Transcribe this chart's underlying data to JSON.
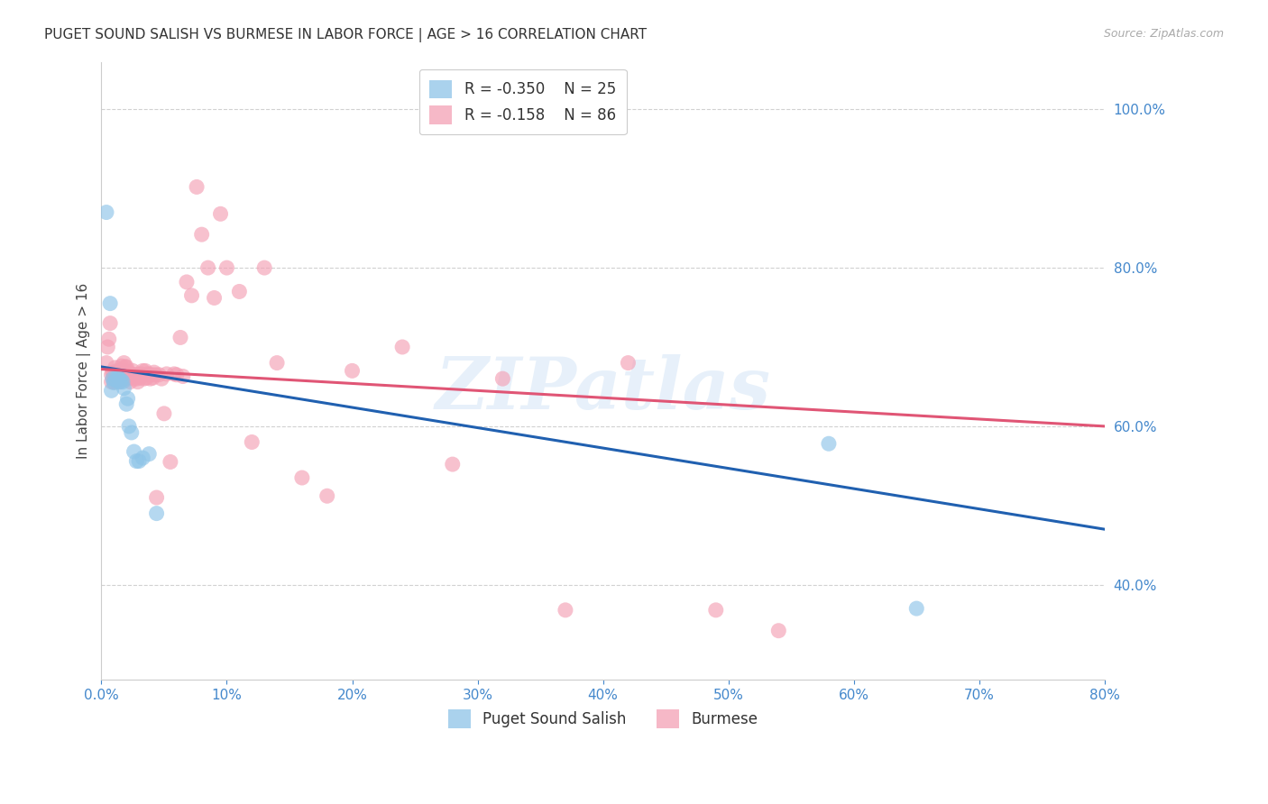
{
  "title": "PUGET SOUND SALISH VS BURMESE IN LABOR FORCE | AGE > 16 CORRELATION CHART",
  "source": "Source: ZipAtlas.com",
  "ylabel": "In Labor Force | Age > 16",
  "legend_labels": [
    "Puget Sound Salish",
    "Burmese"
  ],
  "legend_R": [
    -0.35,
    -0.158
  ],
  "legend_N": [
    25,
    86
  ],
  "blue_color": "#8ec4e8",
  "pink_color": "#f4a0b5",
  "line_blue": "#2060b0",
  "line_pink": "#e05575",
  "axis_color": "#4488cc",
  "xmin": 0.0,
  "xmax": 0.8,
  "ymin": 0.28,
  "ymax": 1.06,
  "yticks": [
    0.4,
    0.6,
    0.8,
    1.0
  ],
  "xticks": [
    0.0,
    0.1,
    0.2,
    0.3,
    0.4,
    0.5,
    0.6,
    0.7,
    0.8
  ],
  "blue_x": [
    0.004,
    0.007,
    0.008,
    0.009,
    0.01,
    0.011,
    0.012,
    0.013,
    0.014,
    0.015,
    0.016,
    0.017,
    0.018,
    0.02,
    0.021,
    0.022,
    0.024,
    0.026,
    0.028,
    0.03,
    0.033,
    0.038,
    0.044,
    0.58,
    0.65
  ],
  "blue_y": [
    0.87,
    0.755,
    0.645,
    0.66,
    0.655,
    0.66,
    0.657,
    0.662,
    0.66,
    0.656,
    0.658,
    0.656,
    0.648,
    0.628,
    0.635,
    0.6,
    0.592,
    0.568,
    0.556,
    0.556,
    0.56,
    0.565,
    0.49,
    0.578,
    0.37
  ],
  "pink_x": [
    0.004,
    0.005,
    0.006,
    0.007,
    0.008,
    0.008,
    0.009,
    0.01,
    0.01,
    0.011,
    0.011,
    0.012,
    0.012,
    0.013,
    0.013,
    0.014,
    0.014,
    0.015,
    0.015,
    0.016,
    0.016,
    0.017,
    0.017,
    0.018,
    0.018,
    0.019,
    0.02,
    0.02,
    0.021,
    0.022,
    0.022,
    0.023,
    0.024,
    0.025,
    0.025,
    0.026,
    0.027,
    0.028,
    0.028,
    0.029,
    0.03,
    0.031,
    0.032,
    0.033,
    0.034,
    0.035,
    0.036,
    0.037,
    0.038,
    0.039,
    0.04,
    0.041,
    0.042,
    0.043,
    0.044,
    0.046,
    0.048,
    0.05,
    0.052,
    0.055,
    0.058,
    0.06,
    0.063,
    0.065,
    0.068,
    0.072,
    0.076,
    0.08,
    0.085,
    0.09,
    0.095,
    0.1,
    0.11,
    0.12,
    0.13,
    0.14,
    0.16,
    0.18,
    0.2,
    0.24,
    0.28,
    0.32,
    0.37,
    0.42,
    0.49,
    0.54
  ],
  "pink_y": [
    0.68,
    0.7,
    0.71,
    0.73,
    0.656,
    0.665,
    0.668,
    0.656,
    0.667,
    0.674,
    0.661,
    0.66,
    0.666,
    0.67,
    0.66,
    0.656,
    0.665,
    0.67,
    0.66,
    0.67,
    0.676,
    0.665,
    0.661,
    0.67,
    0.68,
    0.675,
    0.665,
    0.675,
    0.66,
    0.662,
    0.668,
    0.656,
    0.662,
    0.67,
    0.665,
    0.66,
    0.665,
    0.665,
    0.66,
    0.656,
    0.665,
    0.661,
    0.666,
    0.67,
    0.66,
    0.67,
    0.661,
    0.666,
    0.665,
    0.66,
    0.665,
    0.661,
    0.668,
    0.665,
    0.51,
    0.665,
    0.66,
    0.616,
    0.666,
    0.555,
    0.666,
    0.665,
    0.712,
    0.663,
    0.782,
    0.765,
    0.902,
    0.842,
    0.8,
    0.762,
    0.868,
    0.8,
    0.77,
    0.58,
    0.8,
    0.68,
    0.535,
    0.512,
    0.67,
    0.7,
    0.552,
    0.66,
    0.368,
    0.68,
    0.368,
    0.342
  ],
  "watermark": "ZIPatlas",
  "background_color": "#ffffff",
  "grid_color": "#cccccc",
  "blue_line_x0": 0.0,
  "blue_line_y0": 0.675,
  "blue_line_x1": 0.8,
  "blue_line_y1": 0.47,
  "pink_line_x0": 0.0,
  "pink_line_y0": 0.672,
  "pink_line_x1": 0.8,
  "pink_line_y1": 0.6
}
